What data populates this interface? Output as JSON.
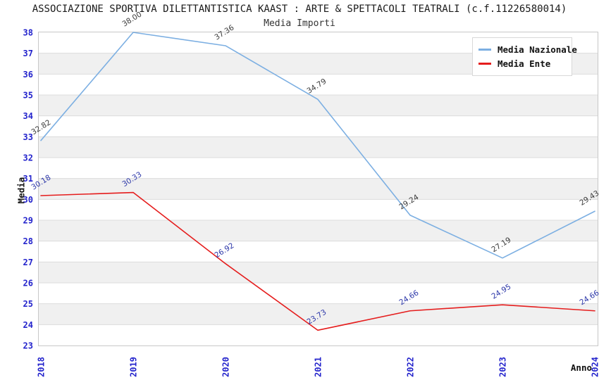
{
  "chart_data": {
    "type": "line",
    "title": "ASSOCIAZIONE SPORTIVA DILETTANTISTICA KAAST : ARTE & SPETTACOLI TEATRALI (c.f.11226580014)",
    "subtitle": "Media Importi",
    "xlabel": "Anno",
    "ylabel": "Media",
    "x": [
      2018,
      2019,
      2020,
      2021,
      2022,
      2023,
      2024
    ],
    "series": [
      {
        "name": "Media Nazionale",
        "color": "#7CAFE2",
        "label_color": "#3A3A3A",
        "values": [
          32.82,
          38.0,
          37.36,
          34.79,
          29.24,
          27.19,
          29.43
        ],
        "labels": [
          "32.82",
          "38.00",
          "37.36",
          "34.79",
          "29.24",
          "27.19",
          "29.43"
        ]
      },
      {
        "name": "Media Ente",
        "color": "#E51D1D",
        "label_color": "#2A35A8",
        "values": [
          30.18,
          30.33,
          26.92,
          23.73,
          24.66,
          24.95,
          24.66
        ],
        "labels": [
          "30.18",
          "30.33",
          "26.92",
          "23.73",
          "24.66",
          "24.95",
          "24.66"
        ]
      }
    ],
    "ylim": [
      23,
      38
    ],
    "y_tick_step": 1,
    "y_ticks": [
      23,
      24,
      25,
      26,
      27,
      28,
      29,
      30,
      31,
      32,
      33,
      34,
      35,
      36,
      37,
      38
    ],
    "axis_tick_color": "#2323CC",
    "band_colors": [
      "#FFFFFF",
      "#F0F0F0"
    ],
    "grid_color": "#DCDCDC",
    "border_color": "#C8C8C8",
    "grid": "horizontal-bands",
    "legend_position": "top-right"
  }
}
